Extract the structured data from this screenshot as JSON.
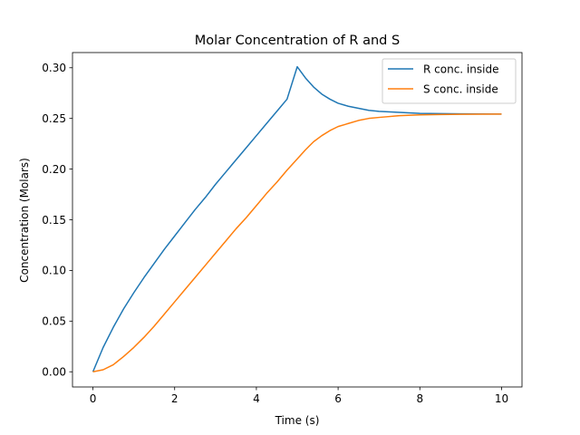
{
  "chart_data": {
    "type": "line",
    "title": "Molar Concentration of R and S",
    "xlabel": "Time (s)",
    "ylabel": "Concentration (Molars)",
    "xlim": [
      -0.5,
      10.5
    ],
    "ylim": [
      -0.015,
      0.315
    ],
    "xticks": [
      0,
      2,
      4,
      6,
      8,
      10
    ],
    "xtick_labels": [
      "0",
      "2",
      "4",
      "6",
      "8",
      "10"
    ],
    "yticks": [
      0.0,
      0.05,
      0.1,
      0.15,
      0.2,
      0.25,
      0.3
    ],
    "ytick_labels": [
      "0.00",
      "0.05",
      "0.10",
      "0.15",
      "0.20",
      "0.25",
      "0.30"
    ],
    "grid": false,
    "legend": "top-right",
    "series": [
      {
        "name": "R conc. inside",
        "color": "#1f77b4",
        "x": [
          0,
          0.25,
          0.5,
          0.75,
          1.0,
          1.25,
          1.5,
          1.75,
          2.0,
          2.25,
          2.5,
          2.75,
          3.0,
          3.25,
          3.5,
          3.75,
          4.0,
          4.25,
          4.5,
          4.75,
          5.0,
          5.2,
          5.4,
          5.6,
          5.8,
          6.0,
          6.25,
          6.5,
          6.75,
          7.0,
          7.5,
          8.0,
          8.5,
          9.0,
          9.5,
          10.0
        ],
        "y": [
          0.0,
          0.024,
          0.044,
          0.062,
          0.078,
          0.093,
          0.107,
          0.121,
          0.134,
          0.147,
          0.16,
          0.172,
          0.185,
          0.197,
          0.209,
          0.221,
          0.233,
          0.245,
          0.257,
          0.269,
          0.301,
          0.29,
          0.281,
          0.274,
          0.269,
          0.265,
          0.262,
          0.26,
          0.258,
          0.257,
          0.256,
          0.255,
          0.2547,
          0.2545,
          0.2544,
          0.2543
        ]
      },
      {
        "name": "S conc. inside",
        "color": "#ff7f0e",
        "x": [
          0,
          0.25,
          0.5,
          0.75,
          1.0,
          1.25,
          1.5,
          1.75,
          2.0,
          2.25,
          2.5,
          2.75,
          3.0,
          3.25,
          3.5,
          3.75,
          4.0,
          4.25,
          4.5,
          4.75,
          5.0,
          5.2,
          5.4,
          5.6,
          5.8,
          6.0,
          6.25,
          6.5,
          6.75,
          7.0,
          7.5,
          8.0,
          8.5,
          9.0,
          9.5,
          10.0
        ],
        "y": [
          0.0,
          0.002,
          0.007,
          0.015,
          0.024,
          0.034,
          0.045,
          0.057,
          0.069,
          0.081,
          0.093,
          0.105,
          0.117,
          0.129,
          0.141,
          0.152,
          0.164,
          0.176,
          0.187,
          0.199,
          0.21,
          0.219,
          0.227,
          0.233,
          0.238,
          0.242,
          0.245,
          0.248,
          0.25,
          0.251,
          0.2527,
          0.2535,
          0.2539,
          0.2541,
          0.2542,
          0.2543
        ]
      }
    ]
  }
}
